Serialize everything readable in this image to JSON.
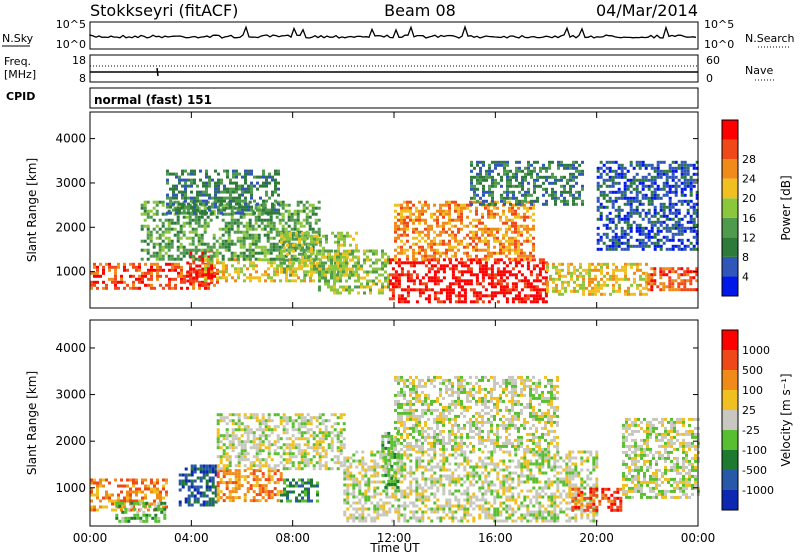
{
  "header": {
    "radar": "Stokkseyri (fitACF)",
    "beam": "Beam 08",
    "date": "04/Mar/2014"
  },
  "noise_panel": {
    "left_label": "N.Sky",
    "right_label": "N.Search",
    "left_ticks": [
      "10^5",
      "10^0"
    ],
    "right_ticks": [
      "10^5",
      "10^0"
    ]
  },
  "freq_panel": {
    "left_label_1": "Freq.",
    "left_label_2": "[MHz]",
    "right_label": "Nave",
    "left_ticks": [
      "18",
      "8"
    ],
    "right_ticks": [
      "60",
      "0"
    ]
  },
  "cpid": {
    "label": "CPID",
    "value": "normal (fast) 151"
  },
  "chart_data": [
    {
      "type": "heatmap",
      "title": "",
      "xlabel": "",
      "ylabel": "Slant Range [km]",
      "x_ticks": [
        "00:00",
        "04:00",
        "08:00",
        "12:00",
        "16:00",
        "20:00",
        "00:00"
      ],
      "y_ticks": [
        "1000",
        "2000",
        "3000",
        "4000"
      ],
      "xlim_hours": [
        0,
        24
      ],
      "ylim_km": [
        180,
        4600
      ],
      "colorbar": {
        "label": "Power [dB]",
        "ticks": [
          "4",
          "8",
          "12",
          "16",
          "20",
          "24",
          "28"
        ],
        "colors": [
          "#0018e8",
          "#2f56b8",
          "#2e7a3a",
          "#4f9a4c",
          "#8cc63c",
          "#f0c020",
          "#f08a18",
          "#f04818",
          "#ff0000"
        ]
      },
      "regions": [
        {
          "h0": 0.0,
          "h1": 5.0,
          "r0": 600,
          "r1": 1200,
          "level": 7
        },
        {
          "h0": 3.8,
          "h1": 4.8,
          "r0": 700,
          "r1": 1500,
          "level": 8
        },
        {
          "h0": 4.5,
          "h1": 9.0,
          "r0": 800,
          "r1": 1300,
          "level": 5
        },
        {
          "h0": 2.0,
          "h1": 9.0,
          "r0": 1300,
          "r1": 2600,
          "level": 3
        },
        {
          "h0": 3.0,
          "h1": 7.5,
          "r0": 2300,
          "r1": 3300,
          "level": 2
        },
        {
          "h0": 7.5,
          "h1": 10.5,
          "r0": 900,
          "r1": 1900,
          "level": 4
        },
        {
          "h0": 9.0,
          "h1": 11.8,
          "r0": 500,
          "r1": 1500,
          "level": 4
        },
        {
          "h0": 11.8,
          "h1": 18.0,
          "r0": 300,
          "r1": 1300,
          "level": 8
        },
        {
          "h0": 12.0,
          "h1": 17.5,
          "r0": 1300,
          "r1": 2600,
          "level": 6
        },
        {
          "h0": 15.0,
          "h1": 19.5,
          "r0": 2500,
          "r1": 3500,
          "level": 2
        },
        {
          "h0": 18.0,
          "h1": 22.0,
          "r0": 500,
          "r1": 1200,
          "level": 5
        },
        {
          "h0": 20.0,
          "h1": 24.0,
          "r0": 1500,
          "r1": 3500,
          "level": 1
        },
        {
          "h0": 22.0,
          "h1": 24.0,
          "r0": 600,
          "r1": 1100,
          "level": 7
        }
      ]
    },
    {
      "type": "heatmap",
      "title": "",
      "xlabel": "Time UT",
      "ylabel": "Slant Range [km]",
      "x_ticks": [
        "00:00",
        "04:00",
        "08:00",
        "12:00",
        "16:00",
        "20:00",
        "00:00"
      ],
      "y_ticks": [
        "1000",
        "2000",
        "3000",
        "4000"
      ],
      "xlim_hours": [
        0,
        24
      ],
      "ylim_km": [
        180,
        4600
      ],
      "colorbar": {
        "label": "Velocity [m s⁻¹]",
        "ticks": [
          "1000",
          "500",
          "100",
          "25",
          "-25",
          "-100",
          "-500",
          "-1000"
        ],
        "colors": [
          "#0c28b0",
          "#2858a8",
          "#1e7a30",
          "#58c030",
          "#c8c8c0",
          "#f0c020",
          "#f08a18",
          "#f04818",
          "#ff0000"
        ]
      },
      "regions": [
        {
          "h0": 0.0,
          "h1": 3.0,
          "r0": 500,
          "r1": 1200,
          "level": 6
        },
        {
          "h0": 1.0,
          "h1": 3.0,
          "r0": 300,
          "r1": 700,
          "level": 3
        },
        {
          "h0": 3.5,
          "h1": 5.0,
          "r0": 600,
          "r1": 1500,
          "level": 1
        },
        {
          "h0": 5.0,
          "h1": 7.5,
          "r0": 700,
          "r1": 1400,
          "level": 6
        },
        {
          "h0": 7.5,
          "h1": 9.0,
          "r0": 700,
          "r1": 1200,
          "level": 2
        },
        {
          "h0": 5.0,
          "h1": 10.0,
          "r0": 1400,
          "r1": 2600,
          "level": 4
        },
        {
          "h0": 10.0,
          "h1": 20.0,
          "r0": 300,
          "r1": 1800,
          "level": 4
        },
        {
          "h0": 12.0,
          "h1": 18.5,
          "r0": 1800,
          "r1": 3400,
          "level": 4
        },
        {
          "h0": 11.5,
          "h1": 12.2,
          "r0": 1000,
          "r1": 2200,
          "level": 3
        },
        {
          "h0": 19.0,
          "h1": 21.0,
          "r0": 500,
          "r1": 1000,
          "level": 7
        },
        {
          "h0": 21.0,
          "h1": 24.0,
          "r0": 800,
          "r1": 2500,
          "level": 4
        }
      ]
    }
  ]
}
